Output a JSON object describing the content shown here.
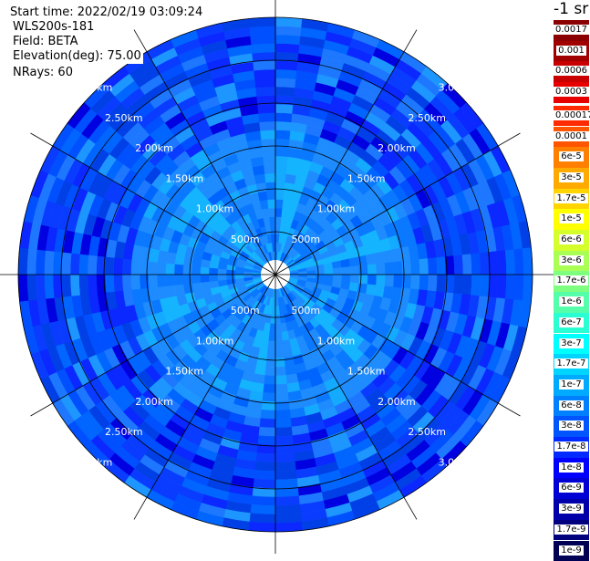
{
  "info": {
    "start_time": "Start time: 2022/02/19 03:09:24",
    "instrument": "WLS200s-181",
    "field": "Field: BETA",
    "elevation": "Elevation(deg): 75.00",
    "nrays": "NRays: 60"
  },
  "range_labels": [
    "500m",
    "1.00km",
    "1.50km",
    "2.00km",
    "2.50km",
    "3.00km"
  ],
  "legend": {
    "unit": "-1 sr",
    "top_entries": [
      {
        "label": "0.0017",
        "color": "#8b0000"
      },
      {
        "label": "0.001",
        "color": "#a00000"
      },
      {
        "label": "0.0006",
        "color": "#c80000"
      },
      {
        "label": "0.0003",
        "color": "#e60000"
      }
    ],
    "entries": [
      {
        "label": "0.00017",
        "color": "#ff2a00"
      },
      {
        "label": "0.0001",
        "color": "#ff5500"
      },
      {
        "label": "6e-5",
        "color": "#ff7f00"
      },
      {
        "label": "3e-5",
        "color": "#ffaa00"
      },
      {
        "label": "1.7e-5",
        "color": "#ffd400"
      },
      {
        "label": "1e-5",
        "color": "#ffff00"
      },
      {
        "label": "6e-6",
        "color": "#d4ff2a"
      },
      {
        "label": "3e-6",
        "color": "#aaff55"
      },
      {
        "label": "1.7e-6",
        "color": "#7fff7f"
      },
      {
        "label": "1e-6",
        "color": "#55ffaa"
      },
      {
        "label": "6e-7",
        "color": "#2affd4"
      },
      {
        "label": "3e-7",
        "color": "#00ffff"
      },
      {
        "label": "1.7e-7",
        "color": "#00d4ff"
      },
      {
        "label": "1e-7",
        "color": "#00aaff"
      },
      {
        "label": "6e-8",
        "color": "#007fff"
      },
      {
        "label": "3e-8",
        "color": "#0055ff"
      },
      {
        "label": "1.7e-8",
        "color": "#002aff"
      },
      {
        "label": "1e-8",
        "color": "#0000ff"
      },
      {
        "label": "6e-9",
        "color": "#0000d4"
      },
      {
        "label": "3e-9",
        "color": "#0000aa"
      },
      {
        "label": "1.7e-9",
        "color": "#00007f"
      },
      {
        "label": "1e-9",
        "color": "#000055"
      }
    ]
  }
}
